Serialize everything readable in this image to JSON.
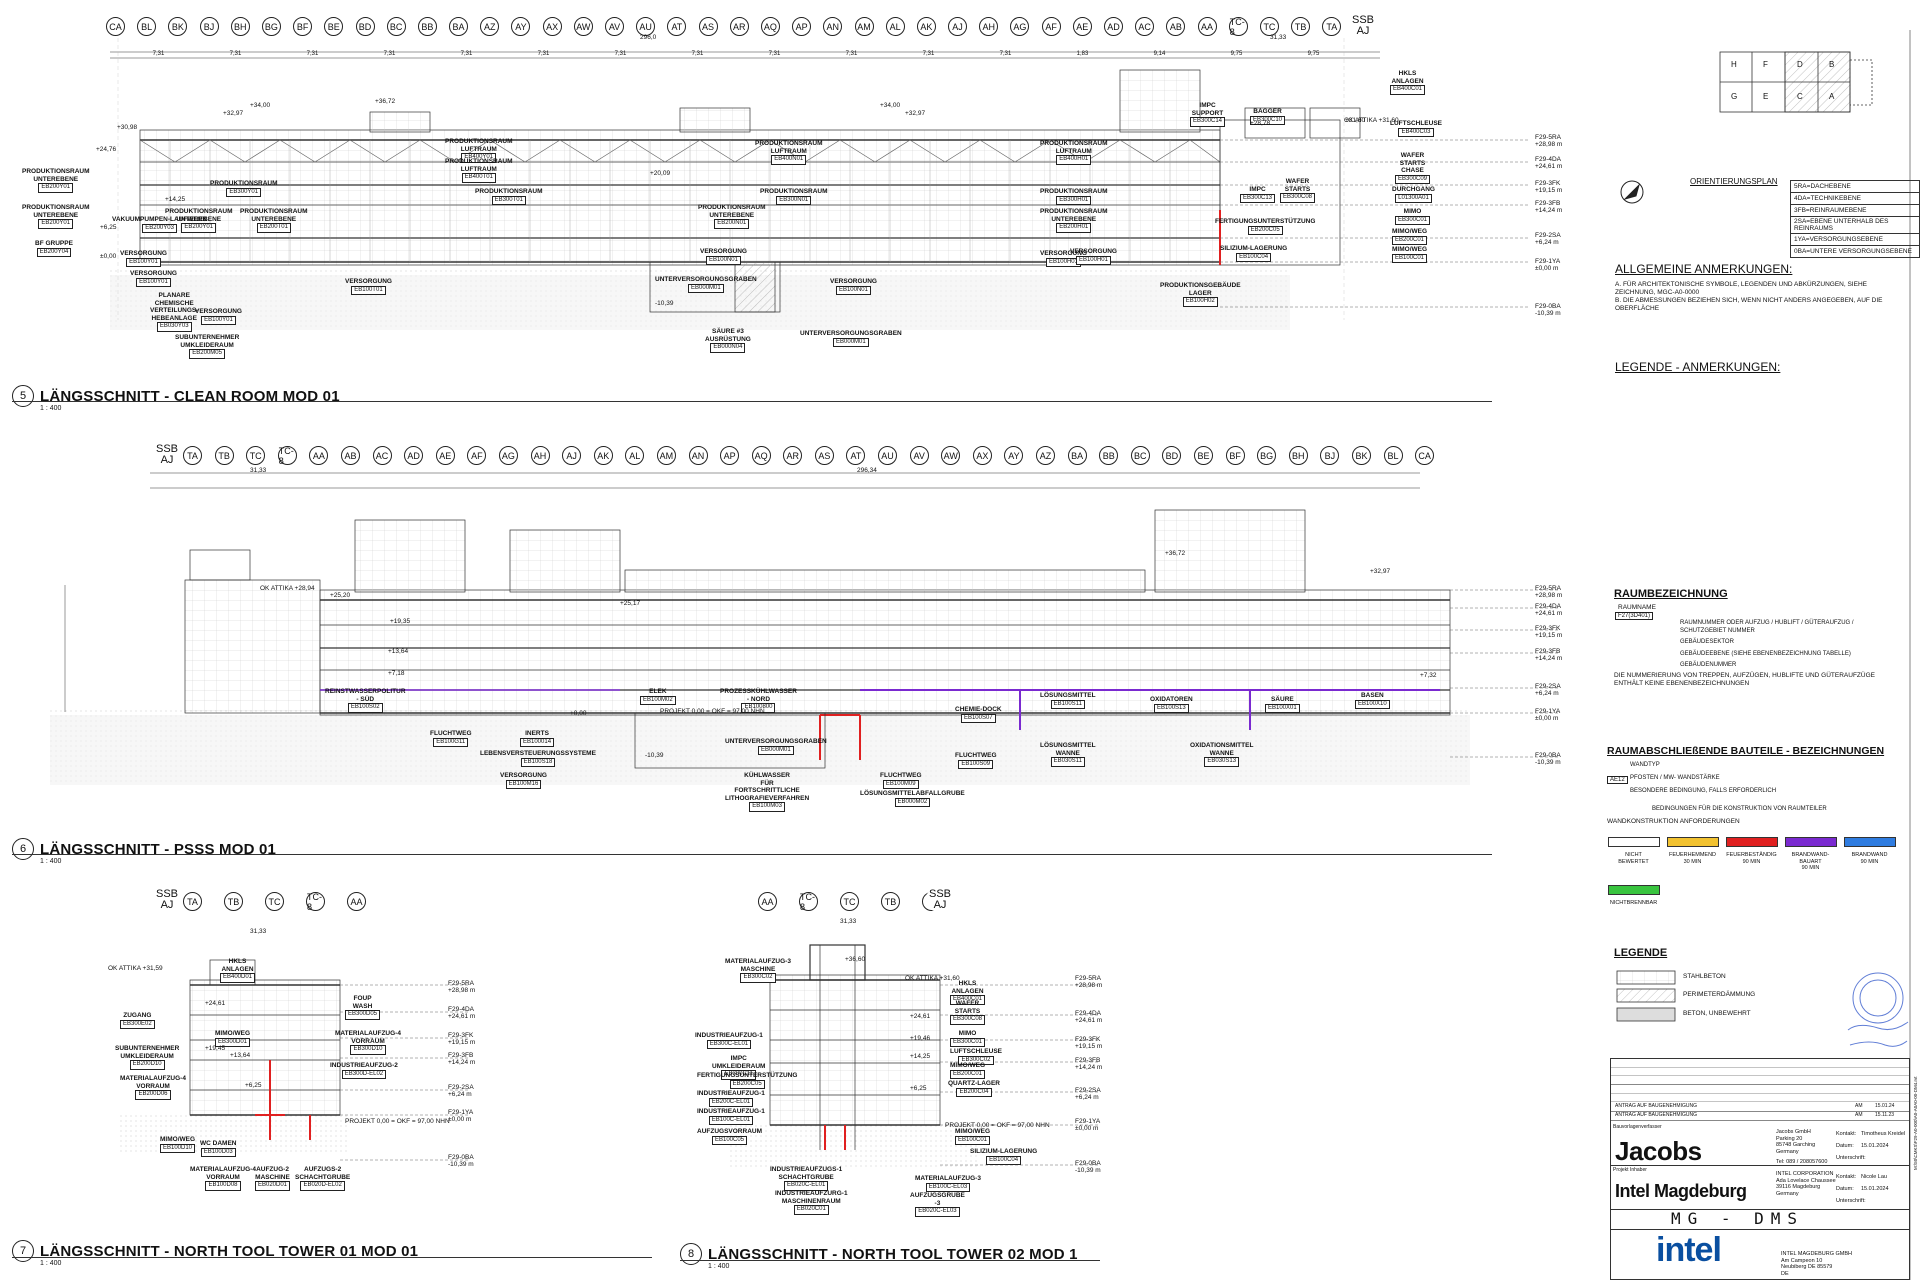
{
  "section5": {
    "grid_top": [
      "CA",
      "BL",
      "BK",
      "BJ",
      "BH",
      "BG",
      "BF",
      "BE",
      "BD",
      "BC",
      "BB",
      "BA",
      "AZ",
      "AY",
      "AX",
      "AW",
      "AV",
      "AU",
      "AT",
      "AS",
      "AR",
      "AQ",
      "AP",
      "AN",
      "AM",
      "AL",
      "AK",
      "AJ",
      "AH",
      "AG",
      "AF",
      "AE",
      "AD",
      "AC",
      "AB",
      "AA",
      "TC-8",
      "TC",
      "TB",
      "TA"
    ],
    "ssb": "SSB\nAJ",
    "num": "5",
    "title": "LÄNGSSCHNITT - CLEAN ROOM MOD 01",
    "scale": "1 : 400",
    "dims": [
      "7,31",
      "7,31",
      "7,31",
      "7,31",
      "7,31",
      "7,31",
      "7,31",
      "7,31",
      "7,31",
      "7,31",
      "7,31",
      "7,31",
      "1,83",
      "9,14",
      "9,75",
      "9,75"
    ],
    "total_left": "296,0",
    "total_right": "31,33",
    "rooms": [
      {
        "name": "PRODUKTIONSRAUM\nUNTEREBENE",
        "tag": "EB200Y01"
      },
      {
        "name": "PRODUKTIONSRAUM\nUNTEREBENE",
        "tag": "EB200Y01"
      },
      {
        "name": "BF GRUPPE",
        "tag": "EB200Y04"
      },
      {
        "name": "VAKUUMPUMPEN-LAUFWERK",
        "tag": "EB200Y03"
      },
      {
        "name": "PRODUKTIONSRAUM",
        "tag": "EB300Y01"
      },
      {
        "name": "PRODUKTIONSRAUM\nUNTEREBENE",
        "tag": "EB200Y01"
      },
      {
        "name": "PRODUKTIONSRAUM\nLUFTRAUM",
        "tag": "EB400Y01"
      },
      {
        "name": "PRODUKTIONSRAUM\nLUFTRAUM",
        "tag": "EB400T01"
      },
      {
        "name": "PRODUKTIONSRAUM",
        "tag": "EB300T01"
      },
      {
        "name": "PRODUKTIONSRAUM\nUNTEREBENE",
        "tag": "EB200T01"
      },
      {
        "name": "VERSORGUNG",
        "tag": "EB100Y01"
      },
      {
        "name": "VERSORGUNG",
        "tag": "EB100T01"
      },
      {
        "name": "VERSORGUNG",
        "tag": "EB100Y01"
      },
      {
        "name": "PLANARE\nCHEMISCHE\nVERTEILUNGS-\nHEBEANLAGE",
        "tag": "EB030Y03"
      },
      {
        "name": "VERSORGUNG",
        "tag": "EB100Y01"
      },
      {
        "name": "SUBUNTERNEHMER\nUMKLEIDERAUM",
        "tag": "EB200M05"
      },
      {
        "name": "PRODUKTIONSRAUM\nLUFTRAUM",
        "tag": "EB400N01"
      },
      {
        "name": "PRODUKTIONSRAUM",
        "tag": "EB300N01"
      },
      {
        "name": "PRODUKTIONSRAUM\nUNTEREBENE",
        "tag": "EB200N01"
      },
      {
        "name": "VERSORGUNG",
        "tag": "EB100N01"
      },
      {
        "name": "UNTERVERSORGUNGSGRABEN",
        "tag": "EB000M01"
      },
      {
        "name": "SÄURE #3\nAUSRÜSTUNG",
        "tag": "EB000N04"
      },
      {
        "name": "UNTERVERSORGUNGSGRABEN",
        "tag": "EB000M01"
      },
      {
        "name": "VERSORGUNG",
        "tag": "EB100N01"
      },
      {
        "name": "PRODUKTIONSRAUM\nLUFTRAUM",
        "tag": "EB400H01"
      },
      {
        "name": "PRODUKTIONSRAUM",
        "tag": "EB300H01"
      },
      {
        "name": "PRODUKTIONSRAUM\nUNTEREBENE",
        "tag": "EB200H01"
      },
      {
        "name": "VERSORGUNG",
        "tag": "EB100H01"
      },
      {
        "name": "VERSORGUNG",
        "tag": "EB100H01"
      },
      {
        "name": "PRODUKTIONSGEBÄUDE\nLAGER",
        "tag": "EB100H02"
      },
      {
        "name": "IMPC\nSUPPORT",
        "tag": "EB300C14"
      },
      {
        "name": "BAGGER",
        "tag": "EB300C10"
      },
      {
        "name": "IMPC",
        "tag": "EB300C13"
      },
      {
        "name": "WAFER\nSTARTS",
        "tag": "EB300C08"
      },
      {
        "name": "FERTIGUNGSUNTERSTÜTZUNG",
        "tag": "EB200C05"
      },
      {
        "name": "SILIZIUM-LAGERUNG",
        "tag": "EB100C04"
      },
      {
        "name": "HKLS\nANLAGEN",
        "tag": "EB400C01"
      },
      {
        "name": "LUFTSCHLEUSE",
        "tag": "EB400C03"
      },
      {
        "name": "WAFER\nSTARTS\nCHASE",
        "tag": "EB300C09"
      },
      {
        "name": "DURCHGANG",
        "tag": "L01300A01"
      },
      {
        "name": "MIMO",
        "tag": "EB300C01"
      },
      {
        "name": "MIMO/WEG",
        "tag": "EB200C01"
      },
      {
        "name": "MIMO/WEG",
        "tag": "EB100C01"
      }
    ],
    "levels": [
      {
        "code": "F29-5RA",
        "elev": "+28,98 m"
      },
      {
        "code": "F29-4DA",
        "elev": "+24,61 m"
      },
      {
        "code": "F29-3FK",
        "elev": "+19,15 m"
      },
      {
        "code": "F29-3FB",
        "elev": "+14,24 m"
      },
      {
        "code": "F29-2SA",
        "elev": "+6,24 m"
      },
      {
        "code": "F29-1YA",
        "elev": "±0,00 m"
      },
      {
        "code": "F29-0BA",
        "elev": "-10,39 m"
      }
    ],
    "elev_marks": [
      "+32,97",
      "+34,00",
      "+36,72",
      "+30,98",
      "+24,76",
      "+20,09",
      "+14,25",
      "+6,25",
      "±0,00",
      "-10,39",
      "+28,78",
      "+31,60",
      "OK ATTIKA +31,60",
      "+32,97",
      "+34,00"
    ]
  },
  "section6": {
    "ssb": "SSB\nAJ",
    "grid_top": [
      "TA",
      "TB",
      "TC",
      "TC-8",
      "AA",
      "AB",
      "AC",
      "AD",
      "AE",
      "AF",
      "AG",
      "AH",
      "AJ",
      "AK",
      "AL",
      "AM",
      "AN",
      "AP",
      "AQ",
      "AR",
      "AS",
      "AT",
      "AU",
      "AV",
      "AW",
      "AX",
      "AY",
      "AZ",
      "BA",
      "BB",
      "BC",
      "BD",
      "BE",
      "BF",
      "BG",
      "BH",
      "BJ",
      "BK",
      "BL",
      "CA"
    ],
    "num": "6",
    "title": "LÄNGSSCHNITT - PSSS MOD 01",
    "scale": "1 : 400",
    "total_left": "31,33",
    "total_right": "296,34",
    "rooms": [
      {
        "name": "REINSTWASSERPOLITUR\n- SÜD",
        "tag": "EB100S02"
      },
      {
        "name": "FLUCHTWEG",
        "tag": "EB100G11"
      },
      {
        "name": "INERTS",
        "tag": "EB100014"
      },
      {
        "name": "LEBENSVERSTEUERUNGSSYSTEME",
        "tag": "EB100S18"
      },
      {
        "name": "VERSORGUNG",
        "tag": "EB100M16"
      },
      {
        "name": "ELEK",
        "tag": "EB100M02"
      },
      {
        "name": "PROZESSKÜHLWASSER\n- NORD",
        "tag": "EB100800"
      },
      {
        "name": "UNTERVERSORGUNGSGRABEN",
        "tag": "EB000M01"
      },
      {
        "name": "KÜHLWASSER\nFÜR\nFORTSCHRITTLICHE\nLITHOGRAFIEVERFAHREN",
        "tag": "EB100M03"
      },
      {
        "name": "FLUCHTWEG",
        "tag": "EB100M09"
      },
      {
        "name": "LÖSUNGSMITTELABFALLGRUBE",
        "tag": "EB000M02"
      },
      {
        "name": "CHEMIE-DOCK",
        "tag": "EB100S07"
      },
      {
        "name": "FLUCHTWEG",
        "tag": "EB100S09"
      },
      {
        "name": "LÖSUNGSMITTEL",
        "tag": "EB100S11"
      },
      {
        "name": "LÖSUNGSMITTEL\nWANNE",
        "tag": "EB030S11"
      },
      {
        "name": "OXIDATOREN",
        "tag": "EB100S13"
      },
      {
        "name": "OXIDATIONSMITTEL\nWANNE",
        "tag": "EB030S13"
      },
      {
        "name": "SÄURE",
        "tag": "EB100X01"
      },
      {
        "name": "BASEN",
        "tag": "EB100X10"
      }
    ],
    "elev_marks": [
      "OK ATTIKA +28,94",
      "+25,20",
      "+19,35",
      "+13,64",
      "+7,18",
      "+36,72",
      "+32,97",
      "+25,17",
      "+7,32",
      "+0,00",
      "-10,39",
      "PROJEKT 0,00 = OKF = 97,00 NHN"
    ]
  },
  "section7": {
    "ssb": "SSB\nAJ",
    "grid_top": [
      "TA",
      "TB",
      "TC",
      "TC-8",
      "AA"
    ],
    "num": "7",
    "title": "LÄNGSSCHNITT - NORTH TOOL TOWER 01 MOD 01",
    "scale": "1 : 400",
    "total": "31,33",
    "rooms": [
      {
        "name": "HKLS\nANLAGEN",
        "tag": "EB400D01"
      },
      {
        "name": "FOUP\nWASH",
        "tag": "EB300D05"
      },
      {
        "name": "ZUGANG",
        "tag": "EB300E02"
      },
      {
        "name": "MATERIALAUFZUG-4\nVORRAUM",
        "tag": "EB300D10"
      },
      {
        "name": "SUBUNTERNEHMER\nUMKLEIDERAUM",
        "tag": "EB200D10"
      },
      {
        "name": "MIMO/WEG",
        "tag": "EB300D01"
      },
      {
        "name": "INDUSTRIEAUFZUG-2",
        "tag": "EB300D-EL02"
      },
      {
        "name": "MATERIALAUFZUG-4\nVORRAUM",
        "tag": "EB200D06"
      },
      {
        "name": "MIMO/WEG",
        "tag": "EB100D10"
      },
      {
        "name": "WC DAMEN",
        "tag": "EB100D03"
      },
      {
        "name": "MATERIALAUFZUG-4\nVORRAUM",
        "tag": "EB100D08"
      },
      {
        "name": "AUFZUG-2\nMASCHINE",
        "tag": "EB020D01"
      },
      {
        "name": "AUFZUGS-2\nSCHACHTGRUBE",
        "tag": "EB020D-EL02"
      }
    ],
    "elev_marks": [
      "OK ATTIKA +31,59",
      "+24,61",
      "+19,45",
      "+13,64",
      "+6,25",
      "PROJEKT 0,00 = OKF = 97,00 NHN"
    ]
  },
  "section8": {
    "ssb": "SSB\nAJ",
    "grid_top": [
      "AA",
      "TC-8",
      "TC",
      "TB",
      "TA"
    ],
    "num": "8",
    "title": "LÄNGSSCHNITT - NORTH TOOL TOWER 02 MOD 1",
    "scale": "1 : 400",
    "total": "31,33",
    "rooms": [
      {
        "name": "MATERIALAUFZUG-3\nMASCHINE",
        "tag": "EB300C02"
      },
      {
        "name": "HKLS\nANLAGEN",
        "tag": "EB400C01"
      },
      {
        "name": "WAFER\nSTARTS",
        "tag": "EB300C08"
      },
      {
        "name": "INDUSTRIEAUFZUG-1",
        "tag": "EB300C-EL01"
      },
      {
        "name": "IMPC\nUMKLEIDERAUM",
        "tag": "EB300C11"
      },
      {
        "name": "MIMO",
        "tag": "EB300C01"
      },
      {
        "name": "LUFTSCHLEUSE",
        "tag": "EB300C02"
      },
      {
        "name": "FERTIGUNGSUNTERSTÜTZUNG",
        "tag": "EB200C05"
      },
      {
        "name": "MIMO/WEG",
        "tag": "EB200C01"
      },
      {
        "name": "INDUSTRIEAUFZUG-1",
        "tag": "EB200C-EL01"
      },
      {
        "name": "QUARTZ-LAGER",
        "tag": "EB200C04"
      },
      {
        "name": "INDUSTRIEAUFZUG-1",
        "tag": "EB100C-EL01"
      },
      {
        "name": "AUFZUGSVORRAUM",
        "tag": "EB100C05"
      },
      {
        "name": "MIMO/WEG",
        "tag": "EB100C01"
      },
      {
        "name": "SILIZIUM-LAGERUNG",
        "tag": "EB100C04"
      },
      {
        "name": "INDUSTRIEAUFZUGS-1\nSCHACHTGRUBE",
        "tag": "EB020C-EL01"
      },
      {
        "name": "MATERIALAUFZUG-3",
        "tag": "EB100C-EL03"
      },
      {
        "name": "INDUSTRIEAUFZURG-1\nMASCHINENRAUM",
        "tag": "EB020C01"
      },
      {
        "name": "AUFZUGSGRUBE\n-3",
        "tag": "EB020C-EL03"
      }
    ],
    "elev_marks": [
      "+36,60",
      "OK ATTIKA +31,60",
      "+24,61",
      "+19,46",
      "+14,25",
      "+6,25",
      "PROJEKT 0,00 = OKF = 97,00 NHN"
    ]
  },
  "orientation": {
    "title": "ORIENTIERUNGSPLAN",
    "keyplan": [
      "H",
      "F",
      "D",
      "B",
      "G",
      "E",
      "C",
      "A"
    ],
    "levels": [
      "5RA=DACHEBENE",
      "4DA=TECHNIKEBENE",
      "3FB=REINRAUMEBENE",
      "2SA=EBENE UNTERHALB DES REINRAUMS",
      "1YA=VERSORGUNGSEBENE",
      "0BA=UNTERE VERSORGUNGSEBENE"
    ]
  },
  "notes": {
    "general_title": "ALLGEMEINE ANMERKUNGEN:",
    "general": [
      "A.   FÜR ARCHITEKTONISCHE SYMBOLE, LEGENDEN UND ABKÜRZUNGEN, SIEHE ZEICHNUNG, MGC-A0-0000",
      "B.   DIE ABMESSUNGEN BEZIEHEN SICH, WENN NICHT ANDERS ANGEGEBEN, AUF DIE OBERFLÄCHE"
    ],
    "legend_title": "LEGENDE - ANMERKUNGEN:"
  },
  "room_designation": {
    "title": "RAUMBEZEICHNUNG",
    "example_name": "RAUMNAME",
    "example_tag": "F27(3D401)",
    "lines": [
      "RAUMNUMMER ODER AUFZUG / HUBLIFT / GÜTERAUFZUG / SCHUTZGEBIET NUMMER",
      "GEBÄUDESEKTOR",
      "GEBÄUDEEBENE (SIEHE EBENENBEZEICHNUNG TABELLE)",
      "GEBÄUDENUMMER"
    ],
    "footnote": "DIE NUMMERIERUNG VON TREPPEN, AUFZÜGEN, HUBLIFTE UND GÜTERAUFZÜGE ENTHÄLT KEINE EBENENBEZEICHNUNGEN"
  },
  "enclosure": {
    "title": "RAUMABSCHLIEßENDE BAUTEILE - BEZEICHNUNGEN",
    "tag": "AE12",
    "lines": [
      "WANDTYP",
      "PFOSTEN / MW- WANDSTÄRKE",
      "BESONDERE BEDINGUNG, FALLS ERFORDERLICH",
      "BEDINGUNGEN FÜR DIE KONSTRUKTION VON RAUMTEILER"
    ],
    "req_title": "WANDKONSTRUKTION ANFORDERUNGEN",
    "swatches": [
      {
        "label": "NICHT\nBEWERTET",
        "color": "#ffffff"
      },
      {
        "label": "FEUERHEMMEND\n30 MIN",
        "color": "#f2c230"
      },
      {
        "label": "FEUERBESTÄNDIG\n90 MIN",
        "color": "#e02020"
      },
      {
        "label": "BRANDWAND-\nBAUART\n90 MIN",
        "color": "#7a2ad0"
      },
      {
        "label": "BRANDWAND\n90 MIN",
        "color": "#2f7ce0"
      },
      {
        "label": "NICHTBRENNBAR",
        "color": "#39c43f"
      }
    ]
  },
  "legend": {
    "title": "LEGENDE",
    "items": [
      "STAHLBETON",
      "PERIMETERDÄMMUNG",
      "BETON, UNBEWEHRT"
    ]
  },
  "titleblock": {
    "rev_rows": [
      {
        "text": "ANTRAG AUF BAUGENEHMIGUNG",
        "code": "AM",
        "date": "15.01.24"
      },
      {
        "text": "ANTRAG AUF BAUGENEHMIGUNG",
        "code": "AM",
        "date": "15.11.23"
      }
    ],
    "author_label": "Bauvorlagenverfasser",
    "jacobs_logo": "Jacobs",
    "jacobs_addr": "Jacobs GmbH\nParking 20\n85748 Garching\nGermany",
    "jacobs_tel": "Tel: 089 / 208057600",
    "jacobs_kontakt_label": "Kontakt:",
    "jacobs_kontakt": "Timotheus Kreidel",
    "jacobs_datum_label": "Datum:",
    "jacobs_datum": "15.01.2024",
    "jacobs_sign_label": "Unterschrift:",
    "client_label": "Projekt Inhaber",
    "project_logo": "Intel Magdeburg",
    "intel_addr": "INTEL CORPORATION\nAda Lovelace Chaussee\n39116 Magdeburg\nGermany",
    "intel_kontakt_label": "Kontakt:",
    "intel_kontakt": "Nicole Lau",
    "intel_datum_label": "Datum:",
    "intel_datum": "15.01.2024",
    "intel_sign_label": "Unterschrift:",
    "project_code": "MG - DMS",
    "intel_logo": "intel",
    "owner_addr": "INTEL MAGDEBURG GMBH\nAm Campeon 10\nNeubiberg DE 85579\nDE",
    "side_code": "M:\\50\\CMKS\\F29-A0-000\\A0-A0A0-00-DM4.rvt"
  },
  "colors": {
    "fire90": "#e02020",
    "firewall": "#7a2ad0",
    "line": "#222222"
  }
}
